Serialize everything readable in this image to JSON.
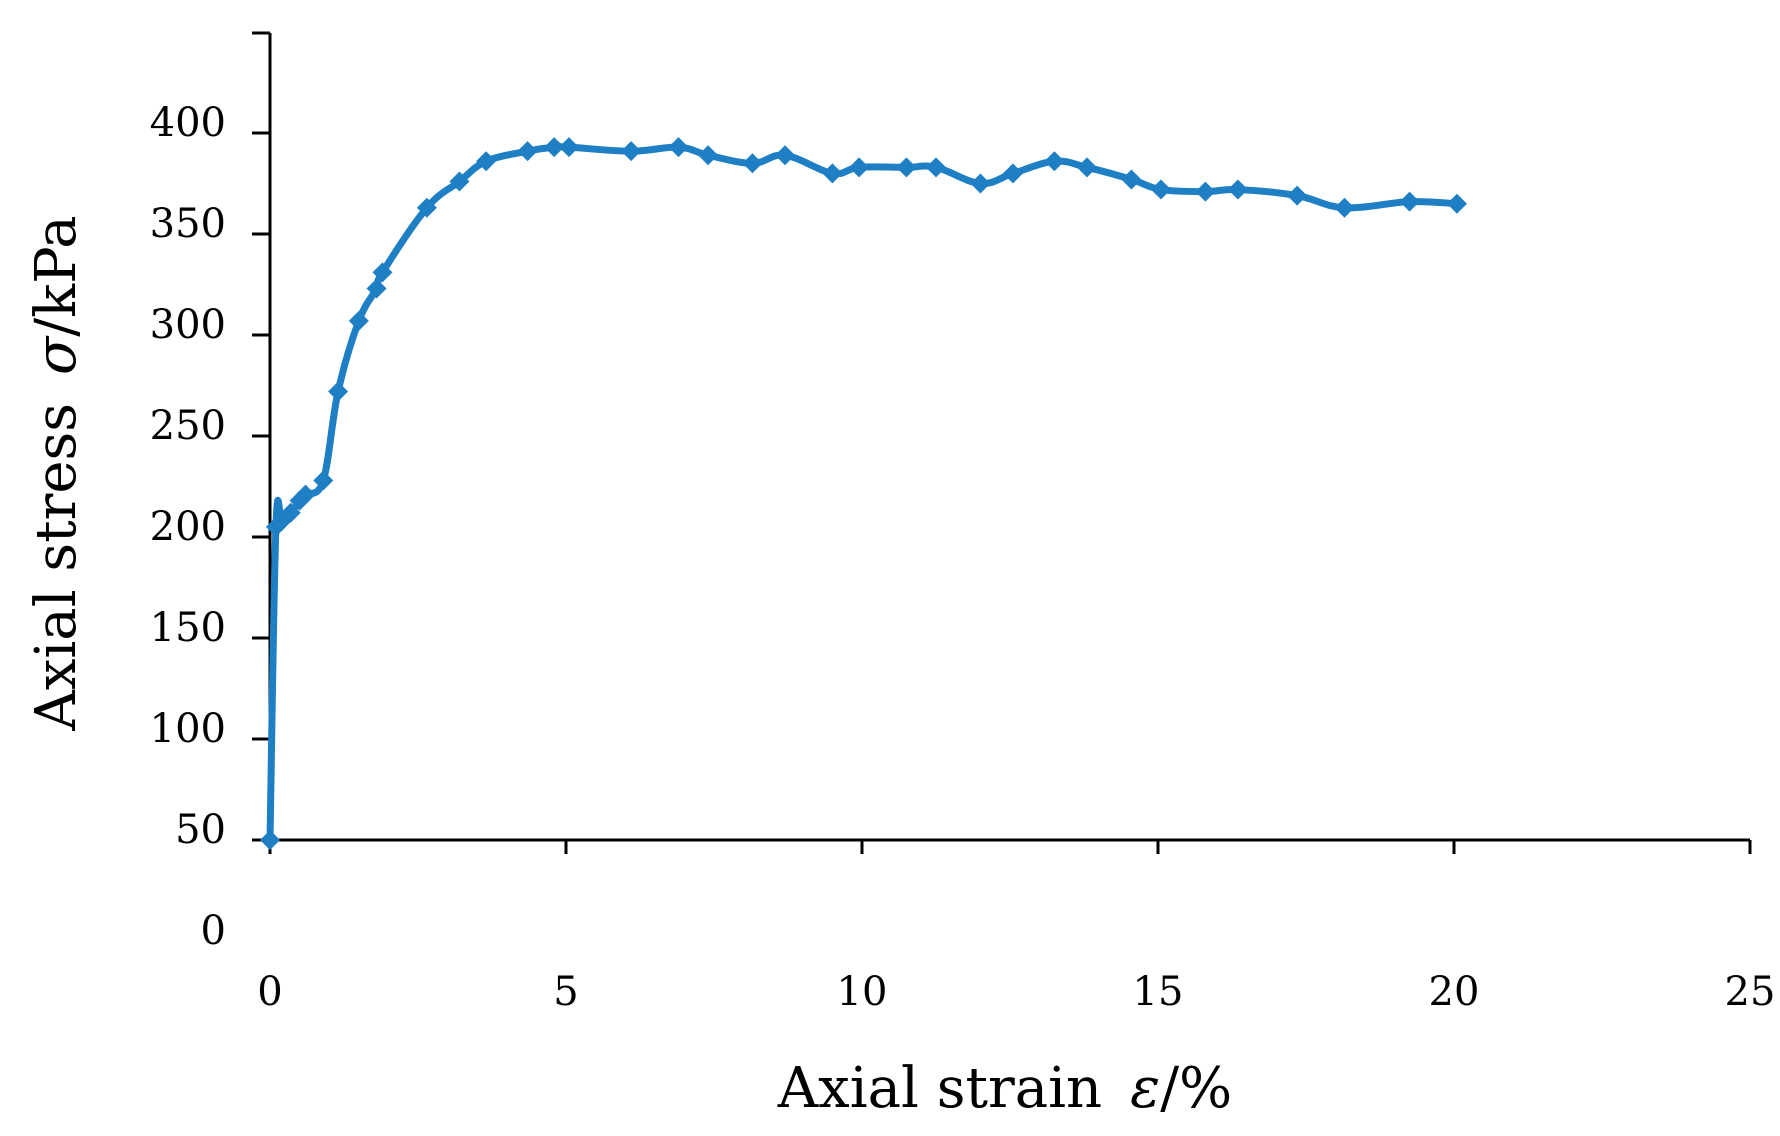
{
  "chart_data": {
    "type": "line",
    "title": "",
    "xlabel": "Axial strain",
    "xlabel_symbol": "ε",
    "xlabel_unit": "/%",
    "ylabel": "Axial stress",
    "ylabel_symbol": "σ",
    "ylabel_unit": "/kPa",
    "xlim": [
      0,
      25
    ],
    "ylim": [
      0,
      400
    ],
    "x_ticks": [
      0,
      5,
      10,
      15,
      20,
      25
    ],
    "y_ticks": [
      0,
      50,
      100,
      150,
      200,
      250,
      300,
      350,
      400
    ],
    "x_tick_labels": [
      "0",
      "5",
      "10",
      "15",
      "20",
      "25"
    ],
    "y_tick_labels": [
      "0",
      "50",
      "100",
      "150",
      "200",
      "250",
      "300",
      "350",
      "400"
    ],
    "grid": false,
    "legend": "none",
    "series": [
      {
        "color": "#1f7fc4",
        "marker": "diamond",
        "x": [
          0,
          0.1,
          0.2,
          0.35,
          0.5,
          0.6,
          0.9,
          1.15,
          1.5,
          1.8,
          1.9,
          2.65,
          3.2,
          3.65,
          4.35,
          4.8,
          5.05,
          6.1,
          6.9,
          7.4,
          8.15,
          8.7,
          9.5,
          9.95,
          10.75,
          11.25,
          12.0,
          12.55,
          13.25,
          13.8,
          14.55,
          15.05,
          15.8,
          16.35,
          17.35,
          18.15,
          19.25,
          20.05
        ],
        "y": [
          50,
          205,
          208,
          212,
          218,
          221,
          228,
          272,
          307,
          323,
          331,
          363,
          376,
          386,
          391,
          393,
          393,
          391,
          393,
          389,
          385,
          389,
          380,
          383,
          383,
          383,
          375,
          380,
          386,
          383,
          377,
          372,
          371,
          372,
          369,
          363,
          366,
          365
        ]
      }
    ]
  }
}
